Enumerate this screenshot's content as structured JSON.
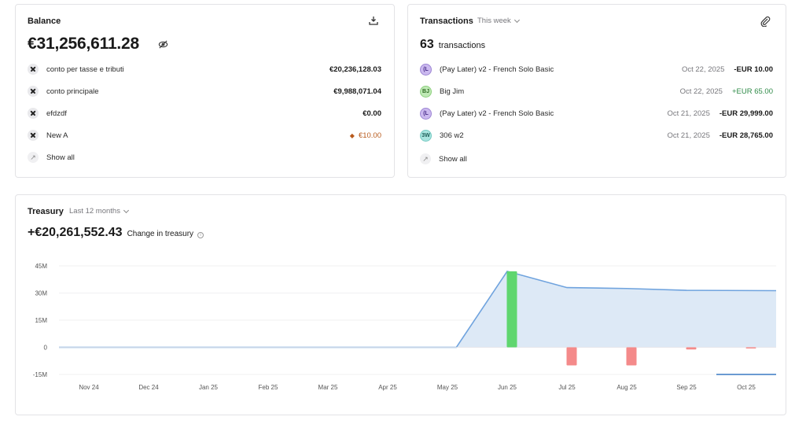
{
  "balance": {
    "title": "Balance",
    "total": "€31,256,611.28",
    "accounts": [
      {
        "name": "conto per tasse e tributi",
        "amount": "€20,236,128.03",
        "warning": false
      },
      {
        "name": "conto principale",
        "amount": "€9,988,071.04",
        "warning": false
      },
      {
        "name": "efdzdf",
        "amount": "€0.00",
        "warning": false
      },
      {
        "name": "New A",
        "amount": "€10.00",
        "warning": true
      }
    ],
    "show_all": "Show all",
    "icons": {
      "download": "download-icon",
      "hide": "eye-off-icon",
      "account": "x-logo-icon"
    }
  },
  "transactions": {
    "title": "Transactions",
    "period": "This week",
    "count": "63",
    "count_label": "transactions",
    "items": [
      {
        "avatar": "(L",
        "avatar_color": "purple",
        "name": "(Pay Later) v2 - French Solo Basic",
        "date": "Oct 22, 2025",
        "amount": "-EUR 10.00",
        "positive": false
      },
      {
        "avatar": "BJ",
        "avatar_color": "green",
        "name": "Big Jim",
        "date": "Oct 22, 2025",
        "amount": "+EUR 65.00",
        "positive": true
      },
      {
        "avatar": "(L",
        "avatar_color": "purple",
        "name": "(Pay Later) v2 - French Solo Basic",
        "date": "Oct 21, 2025",
        "amount": "-EUR 29,999.00",
        "positive": false
      },
      {
        "avatar": "3W",
        "avatar_color": "teal",
        "name": "306 w2",
        "date": "Oct 21, 2025",
        "amount": "-EUR 28,765.00",
        "positive": false
      }
    ],
    "show_all": "Show all",
    "icons": {
      "attach": "paperclip-icon"
    }
  },
  "treasury": {
    "title": "Treasury",
    "period": "Last 12 months",
    "change": "+€20,261,552.43",
    "change_label": "Change in treasury"
  },
  "colors": {
    "positive": "#2e8a47",
    "warning": "#b85a1c",
    "line": "#6fa3de",
    "area": "#dde9f6",
    "bar_in": "#5fd66f",
    "bar_out": "#f48a8a"
  },
  "chart_data": {
    "type": "bar",
    "categories": [
      "Nov 24",
      "Dec 24",
      "Jan 25",
      "Feb 25",
      "Mar 25",
      "Apr 25",
      "May 25",
      "Jun 25",
      "Jul 25",
      "Aug 25",
      "Sep 25",
      "Oct 25"
    ],
    "series": [
      {
        "values": [
          0,
          0,
          0,
          0,
          0,
          0,
          0,
          42000000,
          0,
          0,
          0,
          0
        ],
        "color": "#5fd66f"
      },
      {
        "values": [
          0,
          0,
          0,
          0,
          0,
          0,
          0,
          0,
          -10000000,
          -10000000,
          -1200000,
          -300000
        ],
        "color": "#f48a8a"
      },
      {
        "type": "area",
        "x": [
          0,
          6.65,
          7.5,
          8.5,
          9.5,
          10.5,
          11.5
        ],
        "values": [
          0,
          0,
          42000000,
          33000000,
          32500000,
          31500000,
          31300000
        ],
        "color": "#6fa3de"
      }
    ],
    "ylim": [
      -15000000,
      45000000
    ],
    "yticks": [
      "45M",
      "30M",
      "15M",
      "0",
      "-15M"
    ],
    "ytick_values": [
      45000000,
      30000000,
      15000000,
      0,
      -15000000
    ],
    "highlight_category": "Oct 25",
    "grid": true
  }
}
